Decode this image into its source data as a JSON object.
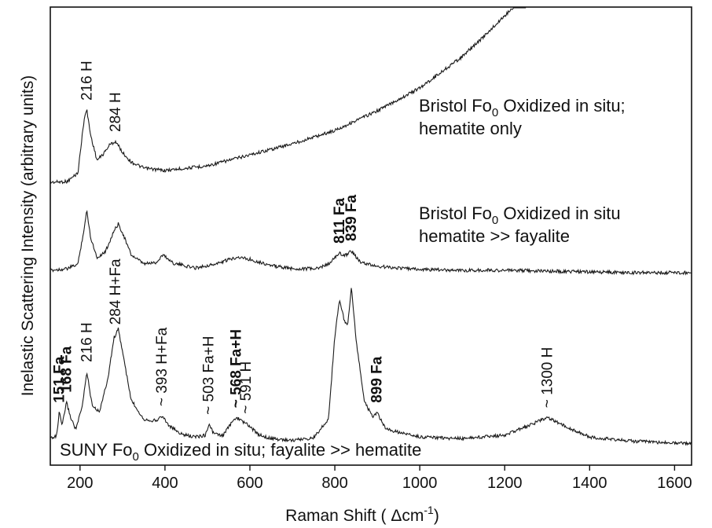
{
  "chart_data": {
    "type": "line",
    "title": "",
    "xlabel": "Raman Shift ( Δcm",
    "xlabel_sup": "-1",
    "xlabel_tail": ")",
    "ylabel": "Inelastic Scattering Intensity (arbitrary units)",
    "xlim": [
      130,
      1640
    ],
    "x_ticks": [
      200,
      400,
      600,
      800,
      1000,
      1200,
      1400,
      1600
    ],
    "y_ticks_shown": false,
    "grid": false,
    "legend": "none",
    "series": [
      {
        "key": "top",
        "x": [
          130,
          170,
          195,
          210,
          216,
          225,
          240,
          255,
          270,
          284,
          300,
          320,
          350,
          400,
          500,
          600,
          700,
          800,
          900,
          1000,
          1100,
          1150,
          1200,
          1230,
          1250
        ],
        "y": [
          4,
          5,
          16,
          86,
          96,
          64,
          32,
          40,
          52,
          56,
          42,
          30,
          22,
          19,
          25,
          39,
          53,
          70,
          95,
          124,
          164,
          189,
          216,
          232,
          246
        ],
        "labels": [
          {
            "text": "Bristol Fo",
            "sub": "0",
            "tail": " Oxidized in situ;"
          },
          {
            "text": "hematite only"
          }
        ]
      },
      {
        "key": "middle",
        "x": [
          130,
          170,
          195,
          210,
          216,
          225,
          240,
          260,
          280,
          290,
          300,
          320,
          350,
          380,
          395,
          420,
          470,
          520,
          570,
          600,
          650,
          700,
          760,
          790,
          811,
          822,
          839,
          860,
          900,
          1000,
          1100,
          1200,
          1300,
          1400,
          1500,
          1640
        ],
        "y": [
          6,
          8,
          14,
          60,
          82,
          48,
          22,
          30,
          56,
          65,
          54,
          26,
          14,
          16,
          26,
          15,
          9,
          14,
          23,
          20,
          12,
          8,
          8,
          16,
          28,
          24,
          31,
          16,
          11,
          7,
          6,
          6,
          5,
          4,
          3,
          3
        ],
        "labels": [
          {
            "text": "Bristol Fo",
            "sub": "0",
            "tail": " Oxidized in situ"
          },
          {
            "text": "hematite >> fayalite"
          }
        ]
      },
      {
        "key": "bottom",
        "x": [
          130,
          145,
          151,
          158,
          168,
          178,
          190,
          205,
          216,
          228,
          245,
          265,
          280,
          290,
          300,
          320,
          350,
          380,
          393,
          410,
          440,
          470,
          495,
          503,
          515,
          535,
          555,
          568,
          580,
          591,
          620,
          650,
          700,
          750,
          785,
          800,
          811,
          822,
          830,
          839,
          850,
          870,
          890,
          899,
          920,
          1000,
          1100,
          1200,
          1260,
          1300,
          1340,
          1400,
          1500,
          1640
        ],
        "y": [
          10,
          12,
          40,
          24,
          52,
          34,
          20,
          46,
          88,
          50,
          40,
          78,
          128,
          138,
          112,
          55,
          32,
          30,
          36,
          24,
          14,
          11,
          13,
          26,
          15,
          12,
          26,
          34,
          30,
          27,
          14,
          9,
          7,
          10,
          32,
          130,
          174,
          148,
          142,
          188,
          125,
          52,
          34,
          40,
          20,
          11,
          9,
          13,
          25,
          34,
          24,
          11,
          6,
          3
        ],
        "labels": [
          {
            "text": "SUNY Fo",
            "sub": "0",
            "tail": " Oxidized in situ; fayalite >> hematite"
          }
        ]
      }
    ],
    "annotations": [
      {
        "text": "216  H",
        "x": 216,
        "series": "top",
        "bold": false
      },
      {
        "text": "284 H",
        "x": 284,
        "series": "top",
        "bold": false
      },
      {
        "text": "811  Fa",
        "x": 811,
        "series": "middle",
        "bold": true
      },
      {
        "text": "839  Fa",
        "x": 839,
        "series": "middle",
        "bold": true
      },
      {
        "text": "151  Fa",
        "x": 151,
        "series": "bottom",
        "bold": true
      },
      {
        "text": "168  Fa",
        "x": 168,
        "series": "bottom",
        "bold": true
      },
      {
        "text": "216  H",
        "x": 216,
        "series": "bottom",
        "bold": false
      },
      {
        "text": "284 H+Fa",
        "x": 284,
        "series": "bottom",
        "bold": false
      },
      {
        "text": "~ 393  H+Fa",
        "x": 393,
        "series": "bottom",
        "bold": false
      },
      {
        "text": "~ 503  Fa+H",
        "x": 503,
        "series": "bottom",
        "bold": false
      },
      {
        "text": "~ 568 Fa+H",
        "x": 568,
        "series": "bottom",
        "bold": true
      },
      {
        "text": "~ 591  H",
        "x": 591,
        "series": "bottom",
        "bold": false
      },
      {
        "text": "899  Fa",
        "x": 899,
        "series": "bottom",
        "bold": true
      },
      {
        "text": "~ 1300  H",
        "x": 1300,
        "series": "bottom",
        "bold": false
      }
    ]
  }
}
